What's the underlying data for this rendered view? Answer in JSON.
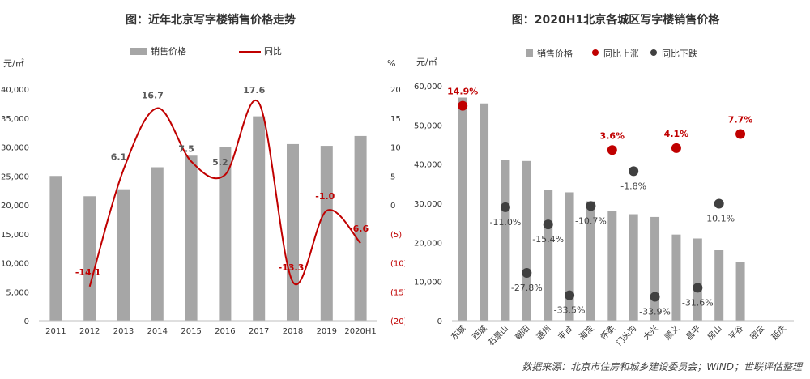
{
  "chart_data": [
    {
      "type": "bar",
      "title": "图：近年北京写字楼销售价格走势",
      "unit_left": "元/㎡",
      "unit_right": "%",
      "categories": [
        "2011",
        "2012",
        "2013",
        "2014",
        "2015",
        "2016",
        "2017",
        "2018",
        "2019",
        "2020H1"
      ],
      "y_ticks": [
        "0",
        "5,000",
        "10,000",
        "15,000",
        "20,000",
        "25,000",
        "30,000",
        "35,000",
        "40,000"
      ],
      "y2_ticks": [
        "(20)",
        "(15)",
        "(10)",
        "(5)",
        "0",
        "5",
        "10",
        "15",
        "20"
      ],
      "ylim": [
        0,
        40000
      ],
      "y2lim": [
        -20,
        20
      ],
      "legend_position": "top",
      "series": [
        {
          "name": "销售价格",
          "type": "bar",
          "color": "#a6a6a6",
          "values": [
            25000,
            21500,
            22700,
            26500,
            28500,
            30000,
            35300,
            30500,
            30200,
            31900
          ]
        },
        {
          "name": "同比",
          "type": "line",
          "color": "#c00000",
          "values": [
            null,
            -14.1,
            6.1,
            16.7,
            7.5,
            5.2,
            17.6,
            -13.3,
            -1.0,
            -6.6
          ],
          "labels": [
            "",
            "-14.1",
            "6.1",
            "16.7",
            "7.5",
            "5.2",
            "17.6",
            "-13.3",
            "-1.0",
            "-6.6"
          ]
        }
      ]
    },
    {
      "type": "bar",
      "title": "图：2020H1北京各城区写字楼销售价格",
      "unit_left": "元/㎡",
      "categories": [
        "东城",
        "西城",
        "石景山",
        "朝阳",
        "通州",
        "丰台",
        "海淀",
        "怀柔",
        "门头沟",
        "大兴",
        "顺义",
        "昌平",
        "房山",
        "平谷",
        "密云",
        "延庆"
      ],
      "y_ticks": [
        "0",
        "10,000",
        "20,000",
        "30,000",
        "40,000",
        "50,000",
        "60,000"
      ],
      "ylim": [
        0,
        60000
      ],
      "legend_position": "top",
      "series": [
        {
          "name": "销售价格",
          "type": "bar",
          "color": "#a6a6a6",
          "values": [
            57000,
            55500,
            41000,
            40800,
            33500,
            32800,
            30500,
            28000,
            27200,
            26500,
            22000,
            21000,
            18000,
            15000,
            null,
            null
          ]
        },
        {
          "name": "同比上涨",
          "type": "scatter",
          "color": "#c00000",
          "values": [
            14.9,
            null,
            null,
            null,
            null,
            null,
            null,
            3.6,
            null,
            null,
            4.1,
            null,
            null,
            7.7,
            null,
            null
          ],
          "labels": [
            "14.9%",
            "",
            "",
            "",
            "",
            "",
            "",
            "3.6%",
            "",
            "",
            "4.1%",
            "",
            "",
            "7.7%",
            "",
            ""
          ]
        },
        {
          "name": "同比下跌",
          "type": "scatter",
          "color": "#404040",
          "values": [
            null,
            null,
            -11.0,
            -27.8,
            -15.4,
            -33.5,
            -10.7,
            null,
            -1.8,
            -33.9,
            null,
            -31.6,
            -10.1,
            null,
            null,
            null
          ],
          "labels": [
            "",
            "",
            "-11.0%",
            "-27.8%",
            "-15.4%",
            "-33.5%",
            "-10.7%",
            "",
            "-1.8%",
            "-33.9%",
            "",
            "-31.6%",
            "-10.1%",
            "",
            "",
            ""
          ]
        }
      ]
    }
  ],
  "source": "数据来源：北京市住房和城乡建设委员会；WIND；世联评估整理"
}
